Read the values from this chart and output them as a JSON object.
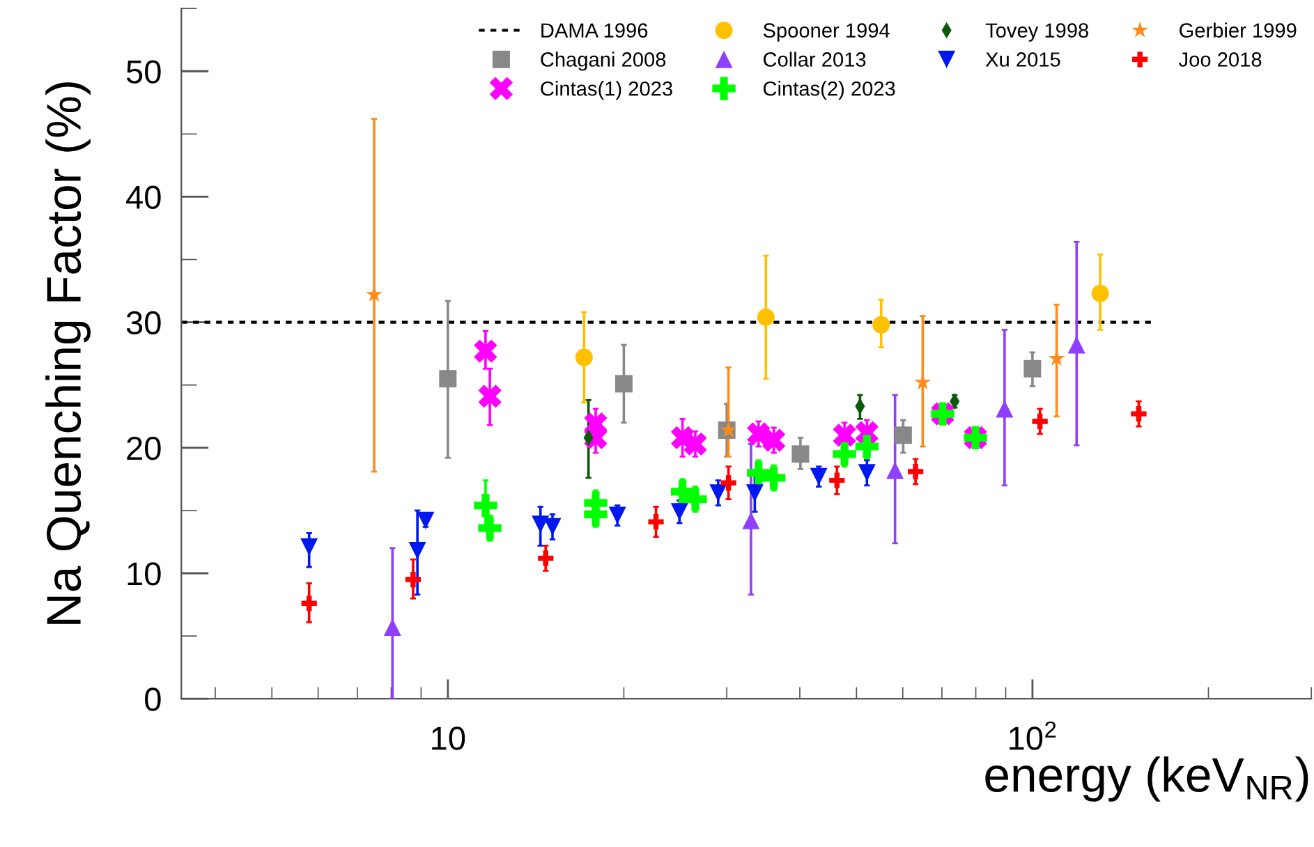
{
  "chart_data": {
    "type": "scatter",
    "xlabel": "energy (keV$_{NR}$)",
    "ylabel": "Na Quenching Factor (%)",
    "log": "x",
    "xlim": [
      3.5,
      300
    ],
    "xticks": [
      10,
      {
        "value": 100,
        "label": "10$^{2}$"
      }
    ],
    "ylim": [
      0,
      55
    ],
    "yticks": [
      0,
      10,
      20,
      30,
      40,
      50
    ],
    "grid": false,
    "legend": "top right",
    "series": [
      {
        "name": "DAMA 1996",
        "type": "line",
        "color": "#000000",
        "line_style": "dotted",
        "marker": "none",
        "x": [
          3.5,
          160
        ],
        "values": [
          30,
          30
        ]
      },
      {
        "name": "Chagani 2008",
        "color": "#888888",
        "marker": "square",
        "x": [
          10.0,
          20.0,
          30.0,
          40.1,
          60.1,
          100
        ],
        "values": [
          25.5,
          25.1,
          21.4,
          19.5,
          21.0,
          26.3
        ],
        "errors": [
          [
            19.2,
            31.7
          ],
          [
            22.0,
            28.2
          ],
          [
            19.3,
            23.5
          ],
          [
            18.3,
            20.8
          ],
          [
            19.6,
            22.2
          ],
          [
            24.9,
            27.6
          ]
        ]
      },
      {
        "name": "Cintas(1) 2023",
        "color": "#ff00ff",
        "marker": "x",
        "x": [
          11.6,
          11.8,
          17.9,
          17.9,
          25.2,
          26.5,
          34.0,
          36.1,
          47.7,
          52.1,
          70.2,
          79.9
        ],
        "values": [
          27.7,
          24.1,
          21.9,
          20.8,
          20.8,
          20.3,
          21.1,
          20.6,
          21.0,
          21.2,
          22.7,
          20.8
        ],
        "errors": [
          [
            26.3,
            29.3
          ],
          [
            21.8,
            26.3
          ],
          1.2,
          1.2,
          1.5,
          1,
          1,
          1,
          1,
          1,
          null,
          null
        ]
      },
      {
        "name": "Spooner 1994",
        "color": "#ffc000",
        "marker": "circle",
        "x": [
          17.1,
          35.0,
          55.1,
          130.6
        ],
        "values": [
          27.2,
          30.4,
          29.8,
          32.3
        ],
        "errors": [
          [
            23.6,
            30.8
          ],
          [
            25.5,
            35.3
          ],
          [
            28.0,
            31.8
          ],
          [
            29.4,
            35.4
          ]
        ]
      },
      {
        "name": "Collar 2013",
        "color": "#8f3fff",
        "marker": "triangle",
        "x": [
          8.04,
          33.0,
          58.2,
          89.6,
          119
        ],
        "values": [
          5.7,
          14.2,
          18.2,
          23.1,
          28.2
        ],
        "errors": [
          [
            0,
            12.0
          ],
          [
            8.3,
            20.3
          ],
          [
            12.4,
            24.2
          ],
          [
            17.0,
            29.4
          ],
          [
            20.2,
            36.4
          ]
        ]
      },
      {
        "name": "Cintas(2) 2023",
        "color": "#00ff00",
        "marker": "plus",
        "x": [
          11.6,
          11.8,
          17.9,
          17.9,
          25.2,
          26.5,
          34.0,
          36.1,
          47.7,
          52.1,
          70.2,
          79.9
        ],
        "values": [
          15.4,
          13.6,
          15.6,
          14.7,
          16.5,
          15.9,
          18.0,
          17.6,
          19.5,
          20.1,
          22.7,
          20.8
        ],
        "errors": [
          [
            13.5,
            17.4
          ],
          1,
          1,
          1,
          1,
          1,
          1,
          1,
          1,
          1,
          null,
          null
        ]
      },
      {
        "name": "Tovey 1998",
        "color": "#0b5a0b",
        "marker": "diamond",
        "x": [
          17.4,
          50.7,
          73.6
        ],
        "values": [
          20.8,
          23.3,
          23.7
        ],
        "errors": [
          [
            17.6,
            23.8
          ],
          [
            22.3,
            24.2
          ],
          0.5
        ]
      },
      {
        "name": "Xu 2015",
        "color": "#0018f0",
        "marker": "triangle_down",
        "x": [
          5.79,
          8.87,
          9.16,
          14.4,
          15.1,
          19.5,
          24.9,
          29.0,
          33.5,
          43.1,
          52.1
        ],
        "values": [
          12.1,
          11.8,
          14.2,
          13.9,
          13.7,
          14.6,
          14.9,
          16.4,
          16.4,
          17.7,
          18.0
        ],
        "errors": [
          [
            10.5,
            13.2
          ],
          [
            8.3,
            15.0
          ],
          0.5,
          [
            12.2,
            15.3
          ],
          1,
          0.8,
          0.9,
          1,
          1.5,
          0.8,
          1
        ]
      },
      {
        "name": "Gerbier 1999",
        "color": "#ff8c1a",
        "marker": "star",
        "x": [
          7.48,
          30.2,
          64.9,
          110
        ],
        "values": [
          32.2,
          21.4,
          25.2,
          27.1
        ],
        "errors": [
          [
            18.1,
            46.2
          ],
          [
            19.3,
            26.4
          ],
          [
            20.1,
            30.5
          ],
          [
            22.5,
            31.4
          ]
        ]
      },
      {
        "name": "Joo 2018",
        "color": "#ff0000",
        "marker": "cross",
        "x": [
          5.79,
          8.72,
          14.7,
          22.7,
          30.2,
          46.3,
          63.1,
          103,
          152
        ],
        "values": [
          7.6,
          9.5,
          11.2,
          14.1,
          17.2,
          17.4,
          18.1,
          22.1,
          22.7
        ],
        "errors": [
          [
            6.1,
            9.2
          ],
          [
            8.0,
            11.1
          ],
          1,
          1.2,
          1.3,
          1.1,
          1,
          1,
          1
        ]
      }
    ]
  }
}
